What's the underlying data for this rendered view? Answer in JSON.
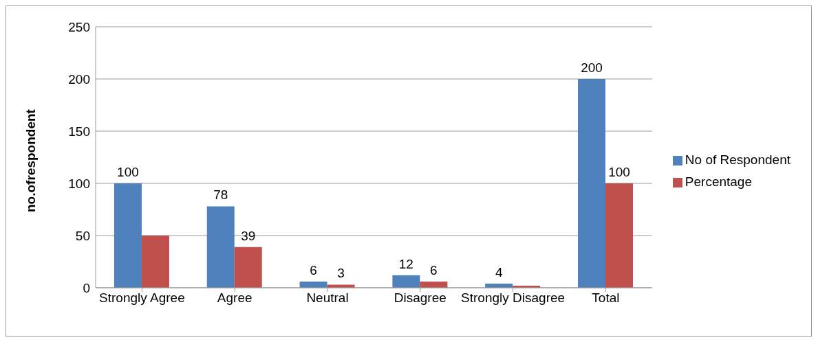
{
  "chart_data": {
    "type": "bar",
    "ylabel": "no.ofrespondent",
    "categories": [
      "Strongly Agree",
      "Agree",
      "Neutral",
      "Disagree",
      "Strongly Disagree",
      "Total"
    ],
    "series": [
      {
        "name": "No of Respondent",
        "color": "#4f81bd",
        "values": [
          100,
          78,
          6,
          12,
          4,
          200
        ],
        "value_labels": [
          "100",
          "78",
          "6",
          "12",
          "4",
          "200"
        ]
      },
      {
        "name": "Percentage",
        "color": "#c0504d",
        "values": [
          50,
          39,
          3,
          6,
          2,
          100
        ],
        "value_labels": [
          null,
          "39",
          "3",
          "6",
          null,
          "100"
        ]
      }
    ],
    "ylim": [
      0,
      250
    ],
    "yticks": [
      0,
      50,
      100,
      150,
      200,
      250
    ],
    "grid": "y",
    "legend": "right"
  }
}
